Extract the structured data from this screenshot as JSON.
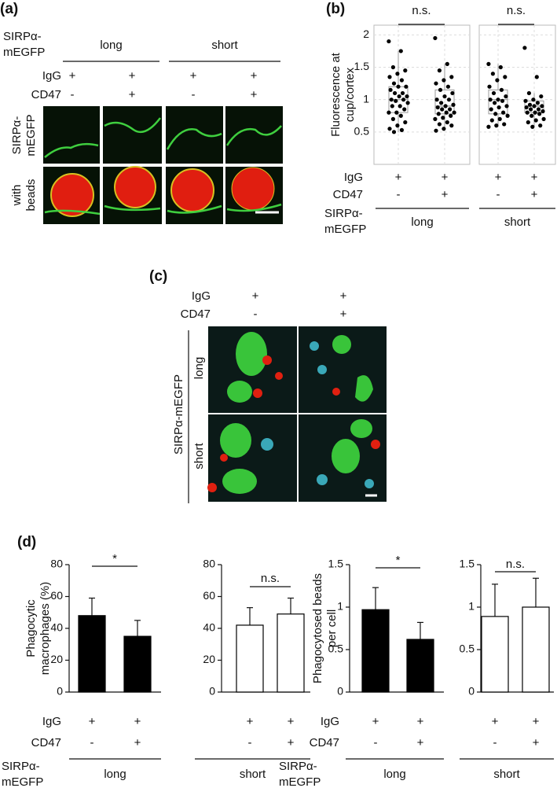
{
  "panel_a": {
    "label": "(a)",
    "construct": [
      "SIRPα-",
      "mEGFP"
    ],
    "variants": [
      "long",
      "short"
    ],
    "treatments": [
      "IgG",
      "CD47"
    ],
    "igg": [
      "+",
      "+",
      "+",
      "+"
    ],
    "cd47": [
      "-",
      "+",
      "-",
      "+"
    ],
    "image_rows": [
      [
        "SIRPα-",
        "mEGFP"
      ],
      [
        "with",
        "beads"
      ]
    ]
  },
  "panel_b": {
    "label": "(b)",
    "treatments": [
      "IgG",
      "CD47"
    ],
    "igg": [
      "+",
      "+",
      "+",
      "+"
    ],
    "cd47": [
      "-",
      "+",
      "-",
      "+"
    ],
    "construct": [
      "SIRPα-",
      "mEGFP"
    ],
    "variants": [
      "long",
      "short"
    ]
  },
  "panel_c": {
    "label": "(c)",
    "treatments": [
      "IgG",
      "CD47"
    ],
    "igg": [
      "+",
      "+"
    ],
    "cd47": [
      "-",
      "+"
    ],
    "construct": "SIRPα-mEGFP",
    "variants": [
      "long",
      "short"
    ]
  },
  "panel_d": {
    "label": "(d)",
    "left": {
      "treatments": [
        "IgG",
        "CD47"
      ],
      "igg": [
        "+",
        "+",
        "+",
        "+"
      ],
      "cd47": [
        "-",
        "+",
        "-",
        "+"
      ],
      "construct": [
        "SIRPα-",
        "mEGFP"
      ],
      "variants": [
        "long",
        "short"
      ]
    },
    "right": {
      "treatments": [
        "IgG",
        "CD47"
      ],
      "igg": [
        "+",
        "+",
        "+",
        "+"
      ],
      "cd47": [
        "-",
        "+",
        "-",
        "+"
      ],
      "construct": [
        "SIRPα-",
        "mEGFP"
      ],
      "variants": [
        "long",
        "short"
      ]
    }
  },
  "chart_data": [
    {
      "type": "box",
      "ylabel": [
        "Fluorescence at",
        "cup/cortex"
      ],
      "annotation": "n.s.",
      "ylim": [
        0,
        2.15
      ],
      "yticks": [
        0.5,
        1,
        1.5,
        2
      ],
      "tick_labels": true,
      "grid": true,
      "boxes": [
        {
          "q1": 0.8,
          "median": 1.0,
          "q3": 1.2,
          "whislo": 0.5,
          "whishi": 1.75,
          "points": [
            1.9,
            1.75,
            1.5,
            1.45,
            1.4,
            1.35,
            1.3,
            1.25,
            1.2,
            1.2,
            1.15,
            1.1,
            1.1,
            1.05,
            1.05,
            1.0,
            1.0,
            0.98,
            0.95,
            0.9,
            0.9,
            0.85,
            0.8,
            0.8,
            0.75,
            0.7,
            0.65,
            0.6,
            0.55,
            0.53,
            0.5
          ]
        },
        {
          "q1": 0.78,
          "median": 0.9,
          "q3": 1.15,
          "whislo": 0.52,
          "whishi": 1.55,
          "points": [
            1.95,
            1.55,
            1.45,
            1.35,
            1.3,
            1.25,
            1.2,
            1.15,
            1.1,
            1.05,
            1.0,
            1.0,
            0.95,
            0.92,
            0.9,
            0.88,
            0.85,
            0.85,
            0.8,
            0.8,
            0.78,
            0.75,
            0.72,
            0.7,
            0.65,
            0.62,
            0.6,
            0.55,
            0.52
          ]
        }
      ]
    },
    {
      "type": "box",
      "annotation": "n.s.",
      "ylim": [
        0,
        2.15
      ],
      "yticks": [
        0.5,
        1,
        1.5,
        2
      ],
      "tick_labels": false,
      "grid": true,
      "boxes": [
        {
          "q1": 0.78,
          "median": 1.0,
          "q3": 1.15,
          "whislo": 0.58,
          "whishi": 1.55,
          "points": [
            1.55,
            1.5,
            1.4,
            1.35,
            1.3,
            1.2,
            1.15,
            1.1,
            1.05,
            1.0,
            1.0,
            0.98,
            0.95,
            0.9,
            0.88,
            0.85,
            0.8,
            0.78,
            0.75,
            0.7,
            0.68,
            0.62,
            0.6,
            0.58
          ]
        },
        {
          "q1": 0.8,
          "median": 0.9,
          "q3": 0.98,
          "whislo": 0.58,
          "whishi": 1.1,
          "points": [
            1.8,
            1.35,
            1.1,
            1.05,
            1.0,
            0.98,
            0.95,
            0.92,
            0.9,
            0.9,
            0.88,
            0.85,
            0.85,
            0.82,
            0.8,
            0.8,
            0.78,
            0.75,
            0.7,
            0.68,
            0.65,
            0.6,
            0.58
          ]
        }
      ]
    },
    {
      "type": "bar",
      "ylabel": [
        "Phagocytic",
        "macrophages (%)"
      ],
      "annotation": "*",
      "values": [
        48,
        35
      ],
      "errors": [
        11,
        10
      ],
      "color": "#000000",
      "ylim": [
        0,
        80
      ],
      "yticks": [
        0,
        20,
        40,
        60,
        80
      ]
    },
    {
      "type": "bar",
      "annotation": "n.s.",
      "values": [
        42,
        49
      ],
      "errors": [
        11,
        10
      ],
      "color": "#ffffff",
      "ylim": [
        0,
        80
      ],
      "yticks": [
        0,
        20,
        40,
        60,
        80
      ]
    },
    {
      "type": "bar",
      "ylabel": [
        "Phagocytosed beads",
        "per cell"
      ],
      "annotation": "*",
      "values": [
        0.97,
        0.62
      ],
      "errors": [
        0.26,
        0.2
      ],
      "color": "#000000",
      "ylim": [
        0,
        1.5
      ],
      "yticks": [
        0,
        0.5,
        1,
        1.5
      ]
    },
    {
      "type": "bar",
      "annotation": "n.s.",
      "values": [
        0.89,
        1.0
      ],
      "errors": [
        0.38,
        0.34
      ],
      "color": "#ffffff",
      "ylim": [
        0,
        1.5
      ],
      "yticks": [
        0,
        0.5,
        1,
        1.5
      ]
    }
  ]
}
